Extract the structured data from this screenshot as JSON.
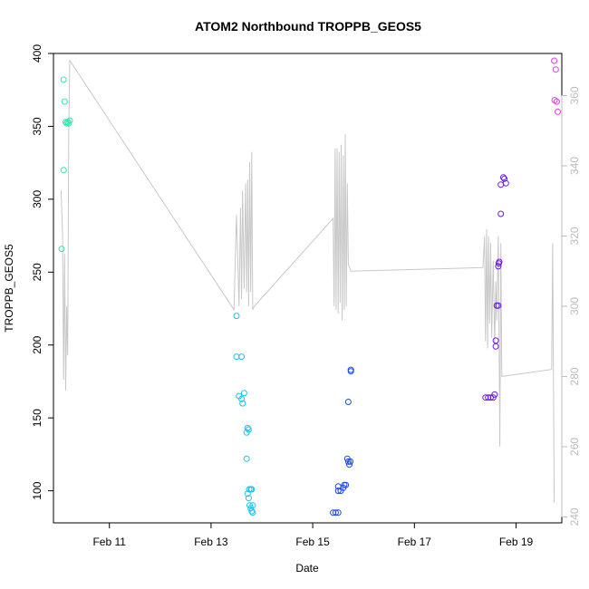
{
  "chart_data": {
    "type": "scatter",
    "title": "ATOM2 Northbound TROPPB_GEOS5",
    "xlabel": "Date",
    "ylabel": "TROPPB_GEOS5",
    "x_unit": "day of February (fractional)",
    "xlim": [
      9.9,
      19.9
    ],
    "ylim": [
      78,
      400
    ],
    "x_ticks": [
      {
        "value": 11,
        "label": "Feb 11"
      },
      {
        "value": 13,
        "label": "Feb 13"
      },
      {
        "value": 15,
        "label": "Feb 15"
      },
      {
        "value": 17,
        "label": "Feb 17"
      },
      {
        "value": 19,
        "label": "Feb 19"
      }
    ],
    "y_ticks": [
      100,
      150,
      200,
      250,
      300,
      350,
      400
    ],
    "y2_ticks": [
      240,
      260,
      280,
      300,
      320,
      340,
      360
    ],
    "y2lim": [
      238.3,
      372.0
    ],
    "grid": false,
    "legend": "none",
    "line_color": "#c8c8c8",
    "series": [
      {
        "color": "#2ee8b0",
        "points": [
          [
            10.1,
            382
          ],
          [
            10.12,
            367
          ],
          [
            10.14,
            353
          ],
          [
            10.16,
            352
          ],
          [
            10.18,
            353
          ],
          [
            10.2,
            352
          ],
          [
            10.22,
            354
          ],
          [
            10.1,
            320
          ],
          [
            10.06,
            266
          ]
        ]
      },
      {
        "color": "#1ec0f0",
        "points": [
          [
            13.5,
            220
          ],
          [
            13.5,
            192
          ],
          [
            13.6,
            192
          ],
          [
            13.55,
            165
          ],
          [
            13.6,
            163
          ],
          [
            13.62,
            160
          ],
          [
            13.65,
            167
          ],
          [
            13.7,
            140
          ],
          [
            13.72,
            143
          ],
          [
            13.74,
            142
          ],
          [
            13.7,
            122
          ],
          [
            13.75,
            101
          ],
          [
            13.78,
            101
          ],
          [
            13.8,
            101
          ],
          [
            13.72,
            98
          ],
          [
            13.74,
            95
          ],
          [
            13.76,
            90
          ],
          [
            13.78,
            88
          ],
          [
            13.82,
            90
          ],
          [
            13.8,
            86
          ],
          [
            13.82,
            85
          ]
        ]
      },
      {
        "color": "#1a4ae8",
        "points": [
          [
            15.4,
            85
          ],
          [
            15.45,
            85
          ],
          [
            15.5,
            85
          ],
          [
            15.5,
            100
          ],
          [
            15.55,
            100
          ],
          [
            15.6,
            102
          ],
          [
            15.62,
            104
          ],
          [
            15.65,
            104
          ],
          [
            15.7,
            120
          ],
          [
            15.72,
            118
          ],
          [
            15.68,
            122
          ],
          [
            15.74,
            120
          ],
          [
            15.7,
            161
          ],
          [
            15.75,
            183
          ],
          [
            15.75,
            182
          ],
          [
            15.5,
            103
          ]
        ]
      },
      {
        "color": "#6a18e0",
        "points": [
          [
            18.4,
            164
          ],
          [
            18.45,
            164
          ],
          [
            18.5,
            164
          ],
          [
            18.55,
            164
          ],
          [
            18.58,
            166
          ],
          [
            18.6,
            199
          ],
          [
            18.6,
            203
          ],
          [
            18.62,
            227
          ],
          [
            18.65,
            227
          ],
          [
            18.65,
            254
          ],
          [
            18.66,
            256
          ],
          [
            18.67,
            257
          ],
          [
            18.7,
            290
          ],
          [
            18.7,
            310
          ],
          [
            18.75,
            315
          ],
          [
            18.77,
            314
          ],
          [
            18.8,
            311
          ]
        ]
      },
      {
        "color": "#e838e8",
        "points": [
          [
            19.75,
            395
          ],
          [
            19.78,
            389
          ],
          [
            19.76,
            368
          ],
          [
            19.8,
            367
          ],
          [
            19.82,
            360
          ]
        ]
      }
    ],
    "line_y2": [
      [
        10.05,
        333
      ],
      [
        10.08,
        320
      ],
      [
        10.1,
        279
      ],
      [
        10.12,
        315
      ],
      [
        10.14,
        276
      ],
      [
        10.16,
        300
      ],
      [
        10.18,
        286
      ],
      [
        10.2,
        348
      ],
      [
        10.22,
        370
      ],
      [
        13.45,
        299
      ],
      [
        13.5,
        326
      ],
      [
        13.55,
        300
      ],
      [
        13.58,
        328
      ],
      [
        13.6,
        302
      ],
      [
        13.62,
        333
      ],
      [
        13.65,
        305
      ],
      [
        13.68,
        335
      ],
      [
        13.7,
        304
      ],
      [
        13.72,
        336
      ],
      [
        13.74,
        300
      ],
      [
        13.76,
        341
      ],
      [
        13.78,
        304
      ],
      [
        13.8,
        344
      ],
      [
        13.82,
        299
      ],
      [
        13.85,
        300
      ],
      [
        15.4,
        325
      ],
      [
        15.42,
        300
      ],
      [
        15.44,
        345
      ],
      [
        15.46,
        299
      ],
      [
        15.48,
        345
      ],
      [
        15.5,
        298
      ],
      [
        15.52,
        344
      ],
      [
        15.54,
        301
      ],
      [
        15.56,
        346
      ],
      [
        15.58,
        296
      ],
      [
        15.6,
        343
      ],
      [
        15.62,
        299
      ],
      [
        15.64,
        349
      ],
      [
        15.66,
        300
      ],
      [
        15.68,
        335
      ],
      [
        15.7,
        312
      ],
      [
        15.75,
        310
      ],
      [
        18.35,
        311
      ],
      [
        18.38,
        320
      ],
      [
        18.4,
        290
      ],
      [
        18.42,
        322
      ],
      [
        18.44,
        288
      ],
      [
        18.46,
        320
      ],
      [
        18.48,
        295
      ],
      [
        18.5,
        318
      ],
      [
        18.52,
        291
      ],
      [
        18.55,
        313
      ],
      [
        18.58,
        289
      ],
      [
        18.6,
        307
      ],
      [
        18.62,
        296
      ],
      [
        18.65,
        320
      ],
      [
        18.68,
        260
      ],
      [
        18.7,
        318
      ],
      [
        18.72,
        280
      ],
      [
        19.7,
        282
      ],
      [
        19.72,
        318
      ],
      [
        19.75,
        244
      ]
    ]
  }
}
